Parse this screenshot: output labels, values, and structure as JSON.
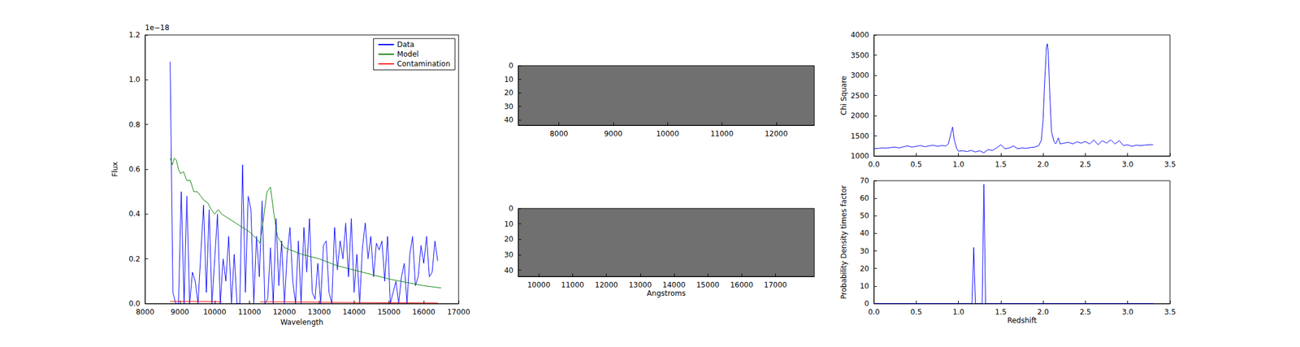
{
  "chart_data": [
    {
      "type": "line",
      "xlabel": "Wavelength",
      "ylabel": "Flux",
      "annotations": [
        "1e−18"
      ],
      "xlim": [
        8000,
        17000
      ],
      "xticks": [
        8000,
        9000,
        10000,
        11000,
        12000,
        13000,
        14000,
        15000,
        16000,
        17000
      ],
      "ylim": [
        0,
        1.2
      ],
      "yticks": [
        {
          "value": 0,
          "label": "0.0"
        },
        0.2,
        0.4,
        0.6,
        0.8,
        {
          "value": 1,
          "label": "1.0"
        },
        1.2
      ],
      "grid": false,
      "legend": "upper right",
      "series": [
        {
          "name": "Data",
          "color": "#0000ff",
          "x": [
            8720,
            8800,
            8880,
            8960,
            9040,
            9120,
            9200,
            9280,
            9360,
            9440,
            9520,
            9600,
            9680,
            9760,
            9840,
            9920,
            10000,
            10080,
            10160,
            10240,
            10320,
            10400,
            10480,
            10560,
            10640,
            10720,
            10800,
            10880,
            10960,
            11040,
            11120,
            11200,
            11280,
            11360,
            11440,
            11520,
            11600,
            11680,
            11760,
            11840,
            11920,
            12000,
            12080,
            12160,
            12240,
            12320,
            12400,
            12480,
            12560,
            12640,
            12720,
            12800,
            12880,
            12960,
            13040,
            13120,
            13200,
            13280,
            13360,
            13440,
            13520,
            13600,
            13680,
            13760,
            13840,
            13920,
            14000,
            14080,
            14160,
            14240,
            14320,
            14400,
            14480,
            14560,
            14640,
            14720,
            14800,
            14880,
            14960,
            15040,
            15120,
            15200,
            15280,
            15360,
            15440,
            15520,
            15600,
            15680,
            15760,
            15840,
            15920,
            16000,
            16080,
            16160,
            16240,
            16320,
            16400
          ],
          "values": [
            1.08,
            0.05,
            0,
            0,
            0.5,
            0,
            0.48,
            0,
            0.14,
            0.1,
            0,
            0.22,
            0.44,
            0.05,
            0.42,
            0,
            0.2,
            0.4,
            0,
            0.2,
            0.1,
            0.3,
            0,
            0.22,
            0,
            0,
            0.62,
            0.05,
            0.48,
            0.42,
            0,
            0.3,
            0.12,
            0.46,
            0,
            0.02,
            0.25,
            0,
            0.38,
            0.08,
            0.28,
            0,
            0.22,
            0.34,
            0.1,
            0,
            0.28,
            0,
            0.34,
            0.14,
            0.38,
            0.05,
            0.02,
            0.18,
            0,
            0.26,
            0.28,
            0.05,
            0,
            0.34,
            0.15,
            0.28,
            0.2,
            0.36,
            0.12,
            0.38,
            0.05,
            0.22,
            0,
            0.25,
            0.36,
            0.2,
            0.3,
            0.12,
            0.27,
            0.24,
            0.28,
            0.1,
            0.3,
            0,
            0.05,
            0.1,
            0,
            0.12,
            0.18,
            0,
            0.22,
            0.3,
            0.08,
            0.12,
            0.26,
            0.18,
            0.3,
            0.12,
            0.14,
            0.28,
            0.19
          ]
        },
        {
          "name": "Model",
          "color": "#008000",
          "x": [
            8720,
            8780,
            8840,
            8900,
            8960,
            9020,
            9100,
            9200,
            9300,
            9400,
            9500,
            9600,
            9700,
            9800,
            9900,
            10000,
            10100,
            10200,
            10400,
            10600,
            10800,
            11000,
            11200,
            11300,
            11400,
            11500,
            11600,
            11700,
            11800,
            12000,
            12500,
            13000,
            13500,
            14000,
            14500,
            15000,
            15500,
            16000,
            16500
          ],
          "values": [
            0.65,
            0.62,
            0.65,
            0.64,
            0.6,
            0.58,
            0.59,
            0.55,
            0.55,
            0.5,
            0.5,
            0.48,
            0.46,
            0.45,
            0.42,
            0.4,
            0.42,
            0.4,
            0.38,
            0.36,
            0.34,
            0.32,
            0.29,
            0.27,
            0.38,
            0.5,
            0.52,
            0.4,
            0.3,
            0.25,
            0.22,
            0.2,
            0.17,
            0.15,
            0.13,
            0.11,
            0.095,
            0.08,
            0.07
          ]
        },
        {
          "name": "Contamination",
          "color": "#ff0000",
          "x": [
            8720,
            9500,
            10200,
            10300,
            11200,
            11300,
            12000,
            13000,
            14000,
            15000,
            16400
          ],
          "values": [
            0.01,
            0.01,
            0.008,
            null,
            null,
            0.008,
            0.008,
            0.006,
            0.005,
            0.004,
            0.003
          ]
        }
      ]
    },
    {
      "type": "image",
      "xlim": [
        7250,
        12700
      ],
      "xticks": [
        8000,
        9000,
        10000,
        11000,
        12000
      ],
      "ylim": [
        0,
        44
      ],
      "yticks": [
        0,
        10,
        20,
        30,
        40
      ]
    },
    {
      "type": "image",
      "xlabel": "Angstroms",
      "xlim": [
        9390,
        18150
      ],
      "xticks": [
        10000,
        11000,
        12000,
        13000,
        14000,
        15000,
        16000,
        17000
      ],
      "ylim": [
        0,
        44
      ],
      "yticks": [
        0,
        10,
        20,
        30,
        40
      ]
    },
    {
      "type": "line",
      "ylabel": "Chi Square",
      "xlim": [
        0,
        3.5
      ],
      "xticks": [
        {
          "value": 0,
          "label": "0.0"
        },
        0.5,
        {
          "value": 1,
          "label": "1.0"
        },
        1.5,
        {
          "value": 2,
          "label": "2.0"
        },
        2.5,
        {
          "value": 3,
          "label": "3.0"
        },
        3.5
      ],
      "ylim": [
        1000,
        4000
      ],
      "yticks": [
        1000,
        1500,
        2000,
        2500,
        3000,
        3500,
        4000
      ],
      "grid": false,
      "series": [
        {
          "color": "#0000ff",
          "x": [
            0,
            0.05,
            0.1,
            0.15,
            0.2,
            0.25,
            0.3,
            0.35,
            0.4,
            0.45,
            0.5,
            0.55,
            0.6,
            0.65,
            0.7,
            0.75,
            0.8,
            0.85,
            0.88,
            0.91,
            0.93,
            0.95,
            0.98,
            1.0,
            1.05,
            1.1,
            1.15,
            1.2,
            1.25,
            1.3,
            1.35,
            1.4,
            1.45,
            1.5,
            1.55,
            1.6,
            1.65,
            1.7,
            1.75,
            1.8,
            1.85,
            1.9,
            1.95,
            1.98,
            2.0,
            2.02,
            2.04,
            2.05,
            2.06,
            2.08,
            2.1,
            2.13,
            2.15,
            2.18,
            2.2,
            2.25,
            2.3,
            2.35,
            2.4,
            2.45,
            2.5,
            2.55,
            2.6,
            2.65,
            2.7,
            2.75,
            2.8,
            2.85,
            2.9,
            2.95,
            3.0,
            3.05,
            3.1,
            3.15,
            3.2,
            3.25,
            3.3
          ],
          "values": [
            1180,
            1190,
            1200,
            1195,
            1210,
            1220,
            1200,
            1230,
            1250,
            1220,
            1240,
            1260,
            1230,
            1250,
            1270,
            1240,
            1260,
            1250,
            1300,
            1550,
            1720,
            1400,
            1180,
            1120,
            1130,
            1110,
            1140,
            1100,
            1130,
            1080,
            1160,
            1140,
            1200,
            1280,
            1180,
            1200,
            1250,
            1180,
            1200,
            1190,
            1210,
            1220,
            1260,
            1400,
            1900,
            2900,
            3700,
            3780,
            3600,
            2500,
            1600,
            1350,
            1300,
            1450,
            1300,
            1320,
            1340,
            1300,
            1350,
            1320,
            1360,
            1300,
            1400,
            1280,
            1380,
            1320,
            1400,
            1300,
            1380,
            1260,
            1280,
            1240,
            1270,
            1260,
            1270,
            1280,
            1280
          ]
        }
      ]
    },
    {
      "type": "line",
      "xlabel": "Redshift",
      "ylabel": "Probability Density times factor",
      "xlim": [
        0,
        3.5
      ],
      "xticks": [
        {
          "value": 0,
          "label": "0.0"
        },
        0.5,
        {
          "value": 1,
          "label": "1.0"
        },
        1.5,
        {
          "value": 2,
          "label": "2.0"
        },
        2.5,
        {
          "value": 3,
          "label": "3.0"
        },
        3.5
      ],
      "ylim": [
        0,
        70
      ],
      "yticks": [
        0,
        10,
        20,
        30,
        40,
        50,
        60,
        70
      ],
      "grid": false,
      "series": [
        {
          "color": "#0000ff",
          "x": [
            0,
            1.16,
            1.18,
            1.2,
            1.28,
            1.3,
            1.32,
            3.3
          ],
          "values": [
            0,
            0,
            32,
            0,
            0,
            68,
            0,
            0
          ]
        }
      ]
    }
  ]
}
